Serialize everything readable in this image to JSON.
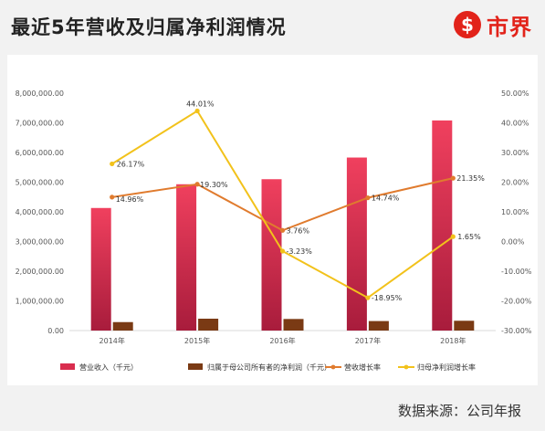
{
  "title": "最近5年营收及归属净利润情况",
  "logo": {
    "glyph": "$",
    "text": "市界"
  },
  "source": "数据来源：公司年报",
  "colors": {
    "revenue": "#d92d4e",
    "netprofit": "#7a3a14",
    "revenue_growth": "#e07b2e",
    "profit_growth": "#f2c21b"
  },
  "chart_data": {
    "type": "bar",
    "title": "",
    "categories": [
      "2014年",
      "2015年",
      "2016年",
      "2017年",
      "2018年"
    ],
    "series": [
      {
        "name": "营业收入（千元）",
        "type": "bar",
        "axis": "left",
        "values": [
          4130000,
          4930000,
          5100000,
          5830000,
          7080000
        ]
      },
      {
        "name": "归属于母公司所有者的净利润（千元）",
        "type": "bar",
        "axis": "left",
        "values": [
          285000,
          400000,
          390000,
          320000,
          330000
        ]
      },
      {
        "name": "营收增长率",
        "type": "line",
        "axis": "right",
        "values": [
          14.96,
          19.3,
          3.76,
          14.74,
          21.35
        ],
        "labels": [
          "14.96%",
          "19.30%",
          "3.76%",
          "14.74%",
          "21.35%"
        ]
      },
      {
        "name": "归母净利润增长率",
        "type": "line",
        "axis": "right",
        "values": [
          26.17,
          44.01,
          -3.23,
          -18.95,
          1.65
        ],
        "labels": [
          "26.17%",
          "44.01%",
          "-3.23%",
          "-18.95%",
          "1.65%"
        ]
      }
    ],
    "left_axis": {
      "ylim": [
        0,
        8000000
      ],
      "ticks": [
        "0.00",
        "1,000,000.00",
        "2,000,000.00",
        "3,000,000.00",
        "4,000,000.00",
        "5,000,000.00",
        "6,000,000.00",
        "7,000,000.00",
        "8,000,000.00"
      ]
    },
    "right_axis": {
      "ylim": [
        -30,
        50
      ],
      "ticks": [
        "-30.00%",
        "-20.00%",
        "-10.00%",
        "0.00%",
        "10.00%",
        "20.00%",
        "30.00%",
        "40.00%",
        "50.00%"
      ]
    },
    "grid": false,
    "legend": "bottom"
  }
}
